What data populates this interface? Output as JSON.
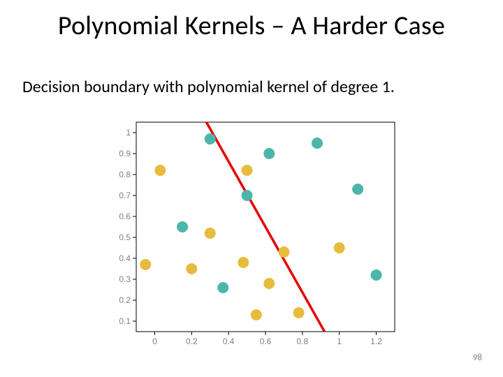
{
  "title": "Polynomial Kernels – A Harder Case",
  "subtitle": "Decision boundary with polynomial kernel of degree 1.",
  "page_number": "98",
  "chart": {
    "type": "scatter",
    "background_color": "#ffffff",
    "axis_color": "#000000",
    "tick_label_color": "#808080",
    "tick_label_fontsize": 12,
    "xlim": [
      -0.1,
      1.3
    ],
    "ylim": [
      0.05,
      1.05
    ],
    "xticks": [
      0,
      0.2,
      0.4,
      0.6,
      0.8,
      1,
      1.2
    ],
    "yticks": [
      0.1,
      0.2,
      0.3,
      0.4,
      0.5,
      0.6,
      0.7,
      0.8,
      0.9,
      1
    ],
    "marker_radius": 8,
    "class_a_color": "#4db6ac",
    "class_b_color": "#e8bb3e",
    "class_a_points": [
      {
        "x": 0.15,
        "y": 0.55
      },
      {
        "x": 0.3,
        "y": 0.97
      },
      {
        "x": 0.62,
        "y": 0.9
      },
      {
        "x": 0.88,
        "y": 0.95
      },
      {
        "x": 0.5,
        "y": 0.7
      },
      {
        "x": 0.37,
        "y": 0.26
      },
      {
        "x": 1.1,
        "y": 0.73
      },
      {
        "x": 1.2,
        "y": 0.32
      }
    ],
    "class_b_points": [
      {
        "x": -0.05,
        "y": 0.37
      },
      {
        "x": 0.03,
        "y": 0.82
      },
      {
        "x": 0.5,
        "y": 0.82
      },
      {
        "x": 0.3,
        "y": 0.52
      },
      {
        "x": 0.2,
        "y": 0.35
      },
      {
        "x": 0.48,
        "y": 0.38
      },
      {
        "x": 0.7,
        "y": 0.43
      },
      {
        "x": 0.62,
        "y": 0.28
      },
      {
        "x": 0.55,
        "y": 0.13
      },
      {
        "x": 0.78,
        "y": 0.14
      },
      {
        "x": 1.0,
        "y": 0.45
      }
    ],
    "boundary_line": {
      "color": "#e60000",
      "width": 3.5,
      "points": [
        {
          "x": 0.28,
          "y": 1.05
        },
        {
          "x": 0.92,
          "y": 0.05
        }
      ]
    }
  }
}
